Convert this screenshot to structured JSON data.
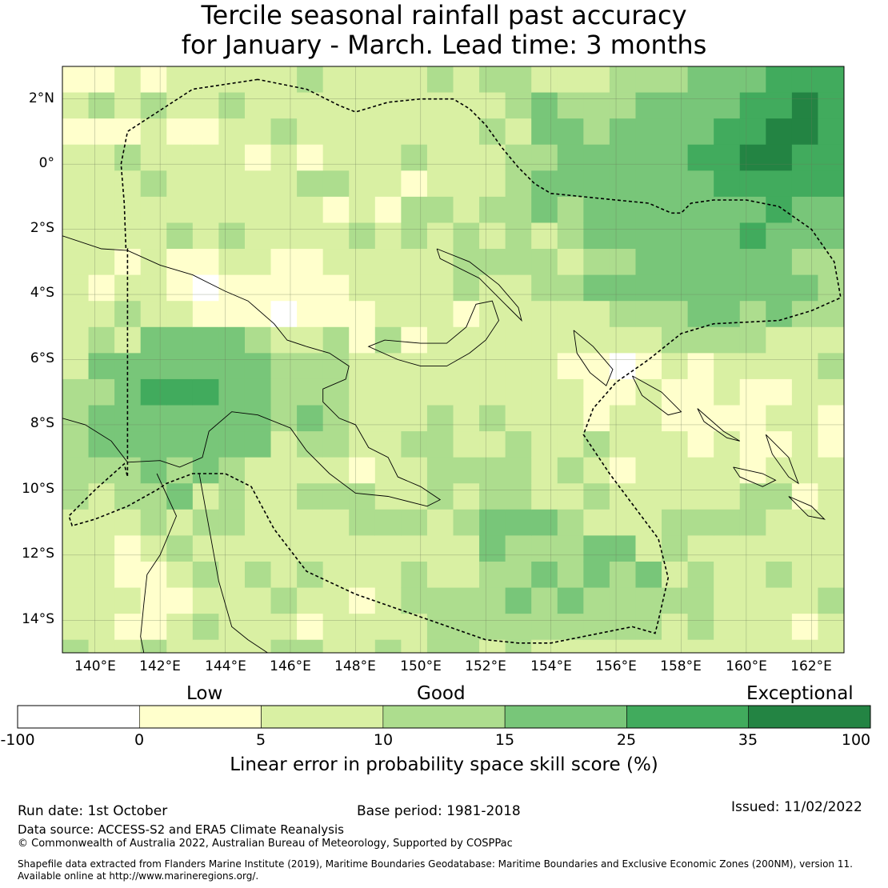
{
  "title": {
    "line1": "Tercile seasonal rainfall past accuracy",
    "line2": "for January - March. Lead time: 3 months"
  },
  "map": {
    "region": "Papua New Guinea and Solomon Islands",
    "lon_range": [
      139,
      163
    ],
    "lat_range": [
      -15,
      3
    ],
    "lat_ticks": [
      {
        "value": 2,
        "label": "2°N"
      },
      {
        "value": 0,
        "label": "0°"
      },
      {
        "value": -2,
        "label": "2°S"
      },
      {
        "value": -4,
        "label": "4°S"
      },
      {
        "value": -6,
        "label": "6°S"
      },
      {
        "value": -8,
        "label": "8°S"
      },
      {
        "value": -10,
        "label": "10°S"
      },
      {
        "value": -12,
        "label": "12°S"
      },
      {
        "value": -14,
        "label": "14°S"
      }
    ],
    "lon_ticks": [
      {
        "value": 140,
        "label": "140°E"
      },
      {
        "value": 142,
        "label": "142°E"
      },
      {
        "value": 144,
        "label": "144°E"
      },
      {
        "value": 146,
        "label": "146°E"
      },
      {
        "value": 148,
        "label": "148°E"
      },
      {
        "value": 150,
        "label": "150°E"
      },
      {
        "value": 152,
        "label": "152°E"
      },
      {
        "value": 154,
        "label": "154°E"
      },
      {
        "value": 156,
        "label": "156°E"
      },
      {
        "value": 158,
        "label": "158°E"
      },
      {
        "value": 160,
        "label": "160°E"
      },
      {
        "value": 162,
        "label": "162°E"
      }
    ],
    "eez_boundary": [
      [
        145.0,
        2.6
      ],
      [
        143.0,
        2.3
      ],
      [
        141.0,
        1.0
      ],
      [
        140.8,
        0.0
      ],
      [
        140.9,
        -1.2
      ],
      [
        140.95,
        -2.6
      ],
      [
        141.0,
        -2.6
      ],
      [
        141.0,
        -9.1
      ],
      [
        141.0,
        -9.6
      ],
      [
        140.9,
        -9.2
      ],
      [
        140.0,
        -10.0
      ],
      [
        139.2,
        -10.8
      ],
      [
        139.3,
        -11.1
      ],
      [
        140.0,
        -10.9
      ],
      [
        141.0,
        -10.5
      ],
      [
        141.9,
        -10.0
      ],
      [
        142.2,
        -9.8
      ],
      [
        143.0,
        -9.5
      ],
      [
        144.0,
        -9.5
      ],
      [
        144.8,
        -9.9
      ],
      [
        145.5,
        -11.2
      ],
      [
        146.5,
        -12.5
      ],
      [
        148.0,
        -13.2
      ],
      [
        150.0,
        -13.9
      ],
      [
        152.0,
        -14.6
      ],
      [
        153.0,
        -14.7
      ],
      [
        154.0,
        -14.7
      ],
      [
        156.5,
        -14.2
      ],
      [
        157.2,
        -14.4
      ],
      [
        157.3,
        -14.0
      ],
      [
        157.6,
        -12.7
      ],
      [
        157.3,
        -11.5
      ],
      [
        155.8,
        -9.5
      ],
      [
        155.0,
        -8.3
      ],
      [
        155.3,
        -7.5
      ],
      [
        156.0,
        -6.7
      ],
      [
        157.0,
        -6.0
      ],
      [
        158.0,
        -5.2
      ],
      [
        159.0,
        -4.9
      ],
      [
        160.0,
        -4.85
      ],
      [
        161.0,
        -4.8
      ],
      [
        162.0,
        -4.5
      ],
      [
        162.9,
        -4.1
      ],
      [
        162.7,
        -3.0
      ],
      [
        162.0,
        -2.0
      ],
      [
        161.0,
        -1.3
      ],
      [
        160.0,
        -1.1
      ],
      [
        159.0,
        -1.1
      ],
      [
        158.3,
        -1.2
      ],
      [
        158.0,
        -1.5
      ],
      [
        157.7,
        -1.5
      ],
      [
        157.0,
        -1.2
      ],
      [
        156.0,
        -1.1
      ],
      [
        155.0,
        -1.0
      ],
      [
        154.0,
        -0.9
      ],
      [
        153.5,
        -0.6
      ],
      [
        153.0,
        -0.1
      ],
      [
        152.5,
        0.5
      ],
      [
        152.0,
        1.2
      ],
      [
        151.5,
        1.7
      ],
      [
        151.0,
        2.0
      ],
      [
        150.0,
        2.0
      ],
      [
        149.0,
        1.9
      ],
      [
        148.0,
        1.6
      ],
      [
        147.5,
        1.8
      ],
      [
        146.5,
        2.3
      ],
      [
        145.0,
        2.6
      ]
    ]
  },
  "legend": {
    "categories": [
      {
        "label": "Low",
        "center_value": 5
      },
      {
        "label": "Good",
        "center_value": 15
      },
      {
        "label": "Exceptional",
        "center_value": 100
      }
    ],
    "bins": [
      {
        "from": -100,
        "to": 0,
        "color": "#ffffff"
      },
      {
        "from": 0,
        "to": 5,
        "color": "#ffffcc"
      },
      {
        "from": 5,
        "to": 10,
        "color": "#d9f0a3"
      },
      {
        "from": 10,
        "to": 15,
        "color": "#addd8e"
      },
      {
        "from": 15,
        "to": 25,
        "color": "#78c679"
      },
      {
        "from": 25,
        "to": 35,
        "color": "#41ab5d"
      },
      {
        "from": 35,
        "to": 100,
        "color": "#238443"
      }
    ],
    "ticks": [
      "-100",
      "0",
      "5",
      "10",
      "15",
      "25",
      "35",
      "100"
    ],
    "title": "Linear error in probability space skill score (%)"
  },
  "footer": {
    "run_date": "Run date: 1st October",
    "base_period": "Base period: 1981-2018",
    "issued": "Issued: 11/02/2022",
    "data_source": "Data source: ACCESS-S2 and ERA5 Climate Reanalysis",
    "copyright": "© Commonwealth of Australia 2022, Australian Bureau of Meteorology, Supported by COSPPac",
    "shapefile_1": "Shapefile data extracted from Flanders Marine Institute (2019), Maritime Boundaries Geodatabase: Maritime Boundaries and Exclusive Economic Zones (200NM), version 11.",
    "shapefile_2": "Available online at http://www.marineregions.org/."
  }
}
